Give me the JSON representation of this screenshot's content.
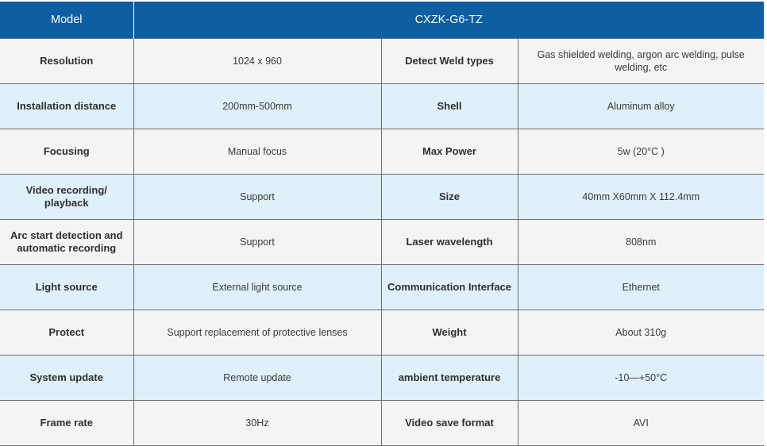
{
  "header": {
    "model_label": "Model",
    "model_value": "CXZK-G6-TZ"
  },
  "rows": [
    {
      "label_a": "Resolution",
      "value_a": "1024 x 960",
      "label_b": "Detect Weld types",
      "value_b": "Gas shielded welding, argon arc welding, pulse welding, etc"
    },
    {
      "label_a": "Installation distance",
      "value_a": "200mm-500mm",
      "label_b": "Shell",
      "value_b": "Aluminum alloy"
    },
    {
      "label_a": "Focusing",
      "value_a": "Manual focus",
      "label_b": "Max Power",
      "value_b": "5w (20°C )"
    },
    {
      "label_a": "Video recording/ playback",
      "value_a": "Support",
      "label_b": "Size",
      "value_b": "40mm X60mm X 112.4mm"
    },
    {
      "label_a": "Arc start detection and automatic recording",
      "value_a": "Support",
      "label_b": "Laser wavelength",
      "value_b": "808nm"
    },
    {
      "label_a": "Light source",
      "value_a": "External light source",
      "label_b": "Communication Interface",
      "value_b": "Ethernet"
    },
    {
      "label_a": "Protect",
      "value_a": "Support replacement of protective lenses",
      "label_b": "Weight",
      "value_b": "About 310g"
    },
    {
      "label_a": "System update",
      "value_a": "Remote update",
      "label_b": "ambient temperature",
      "value_b": "-10—+50°C"
    },
    {
      "label_a": "Frame rate",
      "value_a": "30Hz",
      "label_b": "Video save format",
      "value_b": "AVI"
    }
  ],
  "colors": {
    "header_bg": "#0d5ea3",
    "row_alt_bg": "#dff0fa",
    "row_plain_bg": "#f4f4f4"
  }
}
